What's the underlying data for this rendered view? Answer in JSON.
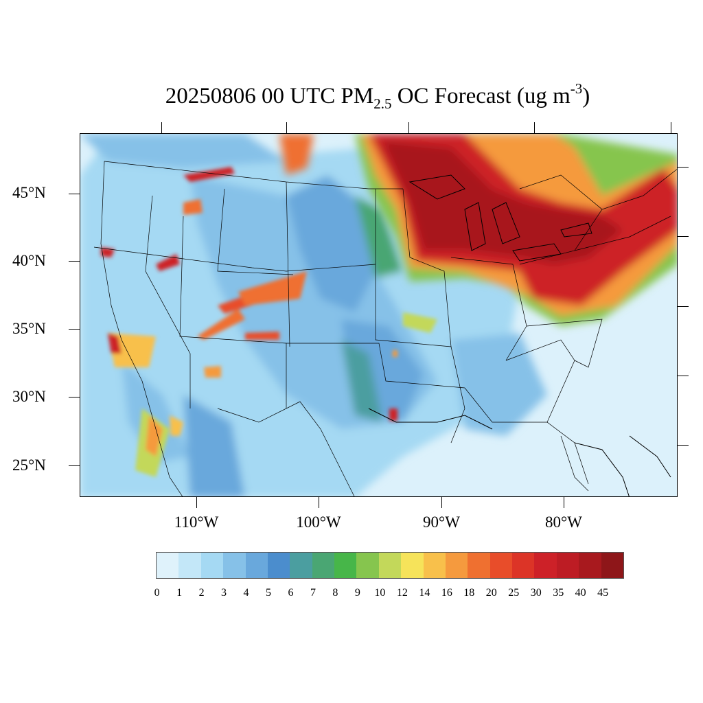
{
  "title": {
    "pre": "20250806 00 UTC PM",
    "sub": "2.5",
    "mid": " OC Forecast (ug m",
    "sup": "-3",
    "post": ")"
  },
  "lat_labels": [
    "45°N",
    "40°N",
    "35°N",
    "30°N",
    "25°N"
  ],
  "lon_labels": [
    "110°W",
    "100°W",
    "90°W",
    "80°W"
  ],
  "legend": {
    "labels": [
      "0",
      "1",
      "2",
      "3",
      "4",
      "5",
      "6",
      "7",
      "8",
      "9",
      "10",
      "12",
      "14",
      "16",
      "18",
      "20",
      "25",
      "30",
      "35",
      "40",
      "45"
    ],
    "colors": [
      "#dff2fb",
      "#c3e7f8",
      "#a5d9f3",
      "#86c1e8",
      "#69a8dc",
      "#4b8dcd",
      "#4b9ea0",
      "#4aa673",
      "#47b649",
      "#86c54e",
      "#c3d85a",
      "#f6e35a",
      "#f8c04b",
      "#f59a3e",
      "#ef7030",
      "#e84d2a",
      "#dc3427",
      "#cd2128",
      "#bd1c24",
      "#a8191e",
      "#8e1619"
    ]
  }
}
